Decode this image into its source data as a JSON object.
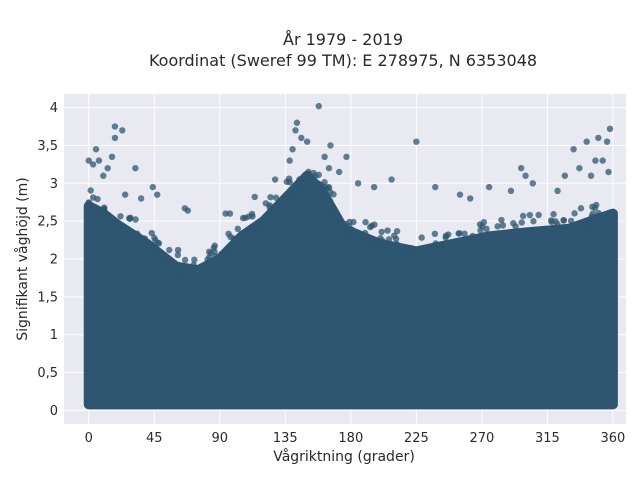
{
  "chart_data": {
    "type": "scatter",
    "title": "År 1979 - 2019",
    "subtitle": "Koordinat (Sweref 99 TM): E 278975, N 6353048",
    "xlabel": "Vågriktning (grader)",
    "ylabel": "Signifikant våghöjd (m)",
    "xlim": [
      -17,
      369
    ],
    "ylim": [
      -0.18,
      4.18
    ],
    "xticks": [
      0,
      45,
      90,
      135,
      180,
      225,
      270,
      315,
      360
    ],
    "xtick_labels": [
      "0",
      "45",
      "90",
      "135",
      "180",
      "225",
      "270",
      "315",
      "360"
    ],
    "yticks": [
      0,
      0.5,
      1,
      1.5,
      2,
      2.5,
      3,
      3.5,
      4
    ],
    "ytick_labels": [
      "0",
      "0,5",
      "1",
      "1,5",
      "2",
      "2,5",
      "3",
      "3,5",
      "4"
    ],
    "grid": true,
    "marker_color": "#2f5670",
    "plot_background": "#e8e9f1",
    "dense_band": [
      {
        "dir": 0,
        "upper": 2.7
      },
      {
        "dir": 10,
        "upper": 2.6
      },
      {
        "dir": 20,
        "upper": 2.45
      },
      {
        "dir": 40,
        "upper": 2.2
      },
      {
        "dir": 60,
        "upper": 1.9
      },
      {
        "dir": 75,
        "upper": 1.85
      },
      {
        "dir": 90,
        "upper": 2.0
      },
      {
        "dir": 105,
        "upper": 2.3
      },
      {
        "dir": 120,
        "upper": 2.5
      },
      {
        "dir": 135,
        "upper": 2.8
      },
      {
        "dir": 150,
        "upper": 3.1
      },
      {
        "dir": 160,
        "upper": 2.9
      },
      {
        "dir": 175,
        "upper": 2.4
      },
      {
        "dir": 200,
        "upper": 2.2
      },
      {
        "dir": 225,
        "upper": 2.1
      },
      {
        "dir": 250,
        "upper": 2.2
      },
      {
        "dir": 275,
        "upper": 2.3
      },
      {
        "dir": 300,
        "upper": 2.35
      },
      {
        "dir": 330,
        "upper": 2.4
      },
      {
        "dir": 345,
        "upper": 2.5
      },
      {
        "dir": 360,
        "upper": 2.6
      }
    ],
    "outliers": [
      {
        "dir": 0,
        "hs": 3.3
      },
      {
        "dir": 3,
        "hs": 3.25
      },
      {
        "dir": 5,
        "hs": 3.45
      },
      {
        "dir": 7,
        "hs": 3.3
      },
      {
        "dir": 10,
        "hs": 3.1
      },
      {
        "dir": 13,
        "hs": 3.2
      },
      {
        "dir": 16,
        "hs": 3.35
      },
      {
        "dir": 18,
        "hs": 3.6
      },
      {
        "dir": 18,
        "hs": 3.75
      },
      {
        "dir": 23,
        "hs": 3.7
      },
      {
        "dir": 32,
        "hs": 3.2
      },
      {
        "dir": 25,
        "hs": 2.85
      },
      {
        "dir": 36,
        "hs": 2.8
      },
      {
        "dir": 44,
        "hs": 2.95
      },
      {
        "dir": 47,
        "hs": 2.85
      },
      {
        "dir": 66,
        "hs": 2.67
      },
      {
        "dir": 68,
        "hs": 2.64
      },
      {
        "dir": 94,
        "hs": 2.6
      },
      {
        "dir": 97,
        "hs": 2.6
      },
      {
        "dir": 114,
        "hs": 2.82
      },
      {
        "dir": 128,
        "hs": 3.05
      },
      {
        "dir": 138,
        "hs": 3.3
      },
      {
        "dir": 140,
        "hs": 3.45
      },
      {
        "dir": 142,
        "hs": 3.7
      },
      {
        "dir": 143,
        "hs": 3.8
      },
      {
        "dir": 146,
        "hs": 3.6
      },
      {
        "dir": 150,
        "hs": 3.55
      },
      {
        "dir": 158,
        "hs": 4.02
      },
      {
        "dir": 162,
        "hs": 3.35
      },
      {
        "dir": 165,
        "hs": 3.2
      },
      {
        "dir": 166,
        "hs": 3.5
      },
      {
        "dir": 172,
        "hs": 3.15
      },
      {
        "dir": 177,
        "hs": 3.35
      },
      {
        "dir": 185,
        "hs": 3.0
      },
      {
        "dir": 196,
        "hs": 2.95
      },
      {
        "dir": 208,
        "hs": 3.05
      },
      {
        "dir": 225,
        "hs": 3.55
      },
      {
        "dir": 238,
        "hs": 2.95
      },
      {
        "dir": 255,
        "hs": 2.85
      },
      {
        "dir": 262,
        "hs": 2.8
      },
      {
        "dir": 275,
        "hs": 2.95
      },
      {
        "dir": 290,
        "hs": 2.9
      },
      {
        "dir": 297,
        "hs": 3.2
      },
      {
        "dir": 300,
        "hs": 3.1
      },
      {
        "dir": 305,
        "hs": 3.0
      },
      {
        "dir": 322,
        "hs": 2.9
      },
      {
        "dir": 327,
        "hs": 3.1
      },
      {
        "dir": 333,
        "hs": 3.45
      },
      {
        "dir": 337,
        "hs": 3.2
      },
      {
        "dir": 342,
        "hs": 3.55
      },
      {
        "dir": 345,
        "hs": 3.1
      },
      {
        "dir": 348,
        "hs": 3.3
      },
      {
        "dir": 350,
        "hs": 3.6
      },
      {
        "dir": 353,
        "hs": 3.3
      },
      {
        "dir": 356,
        "hs": 3.55
      },
      {
        "dir": 358,
        "hs": 3.72
      },
      {
        "dir": 357,
        "hs": 3.15
      }
    ]
  }
}
